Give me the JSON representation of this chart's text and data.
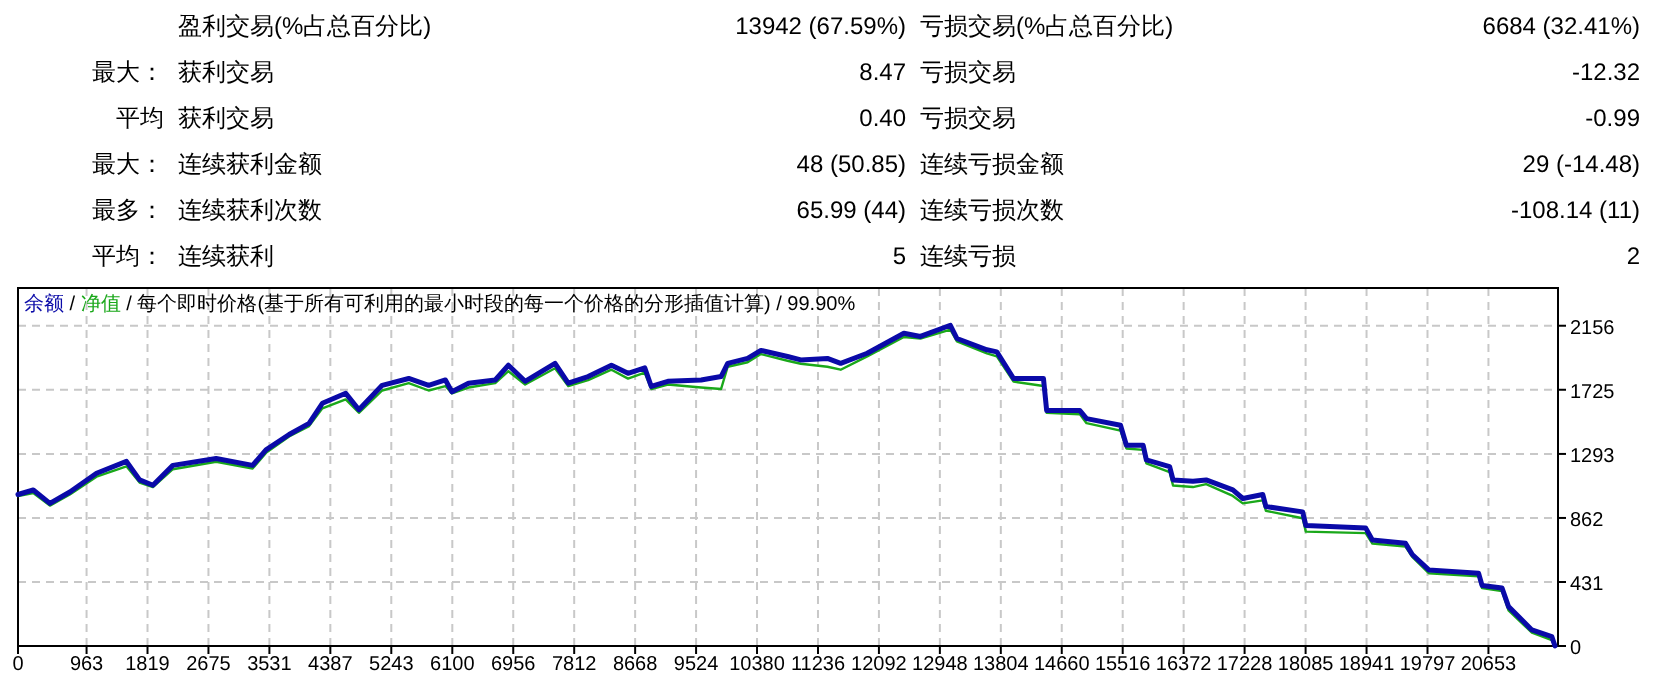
{
  "chart_data": [
    {
      "type": "other",
      "annotations": [
        "盈利交易(%占总百分比)",
        "13942 (67.59%)",
        "亏损交易(%占总百分比)",
        "6684 (32.41%)",
        "最大：",
        "获利交易",
        "8.47",
        "亏损交易",
        "-12.32",
        "平均",
        "获利交易",
        "0.40",
        "亏损交易",
        "-0.99",
        "最大：",
        "连续获利金额",
        "48 (50.85)",
        "连续亏损金额",
        "29 (-14.48)",
        "最多：",
        "连续获利次数",
        "65.99 (44)",
        "连续亏损次数",
        "-108.14 (11)",
        "平均：",
        "连续获利",
        "5",
        "连续亏损",
        "2"
      ]
    },
    {
      "type": "line",
      "annotations": [
        "/",
        "/"
      ],
      "title": "每个即时价格(基于所有可利用的最小时段的每一个价格的分形插值计算) / 99.90%",
      "legend": "top left",
      "grid": true,
      "line_style": "solid",
      "marker": "none",
      "x": [
        0,
        215,
        448,
        728,
        1103,
        1523,
        1708,
        1895,
        2175,
        2783,
        3295,
        3483,
        3808,
        4088,
        4275,
        4603,
        4788,
        5115,
        5488,
        5768,
        6003,
        6095,
        6328,
        6703,
        6888,
        7123,
        7543,
        7728,
        8008,
        8335,
        8568,
        8803,
        8895,
        9128,
        9595,
        9875,
        9968,
        10248,
        10435,
        10808,
        10995,
        11368,
        11555,
        11928,
        12443,
        12675,
        13095,
        13188,
        13608,
        13748,
        13983,
        14403,
        14448,
        14915,
        15008,
        15485,
        15568,
        15803,
        15848,
        16175,
        16223,
        16503,
        16688,
        17063,
        17203,
        17483,
        17528,
        18043,
        18088,
        18928,
        19023,
        19488,
        19583,
        19815,
        20515,
        20563,
        20843,
        20935,
        21263,
        21543,
        21588
      ],
      "series": [
        {
          "name": "余额",
          "color": "#0a0aa8",
          "values": [
            1020,
            1050,
            960,
            1037,
            1163,
            1243,
            1118,
            1082,
            1216,
            1262,
            1216,
            1320,
            1424,
            1499,
            1634,
            1701,
            1590,
            1755,
            1801,
            1755,
            1791,
            1711,
            1769,
            1791,
            1890,
            1782,
            1903,
            1769,
            1814,
            1890,
            1836,
            1872,
            1747,
            1782,
            1791,
            1814,
            1903,
            1936,
            1990,
            1949,
            1926,
            1936,
            1903,
            1971,
            2105,
            2084,
            2159,
            2070,
            1994,
            1980,
            1801,
            1801,
            1585,
            1585,
            1531,
            1486,
            1351,
            1351,
            1253,
            1208,
            1118,
            1109,
            1118,
            1051,
            993,
            1020,
            939,
            903,
            812,
            795,
            714,
            691,
            616,
            512,
            489,
            408,
            391,
            265,
            108,
            63,
            0
          ]
        },
        {
          "name": "净值",
          "color": "#1aa81a",
          "values": [
            1010,
            1030,
            945,
            1020,
            1140,
            1210,
            1100,
            1070,
            1190,
            1240,
            1195,
            1300,
            1410,
            1480,
            1600,
            1660,
            1570,
            1720,
            1770,
            1720,
            1750,
            1700,
            1740,
            1770,
            1850,
            1760,
            1870,
            1750,
            1790,
            1860,
            1800,
            1840,
            1730,
            1760,
            1740,
            1730,
            1880,
            1910,
            1965,
            1920,
            1900,
            1880,
            1860,
            1950,
            2080,
            2070,
            2130,
            2050,
            1970,
            1950,
            1780,
            1750,
            1570,
            1560,
            1500,
            1450,
            1330,
            1320,
            1230,
            1170,
            1080,
            1070,
            1090,
            1010,
            960,
            980,
            910,
            860,
            770,
            760,
            690,
            670,
            600,
            490,
            470,
            390,
            370,
            240,
            90,
            40,
            0
          ]
        }
      ],
      "xlim": [
        0,
        21630
      ],
      "xticks": [
        0,
        963,
        1819,
        2675,
        3531,
        4387,
        5243,
        6100,
        6956,
        7812,
        8668,
        9524,
        10380,
        11236,
        12092,
        12948,
        13804,
        14660,
        15516,
        16372,
        17228,
        18085,
        18941,
        19797,
        20653
      ],
      "ylim": [
        0,
        2410
      ],
      "yticks": [
        0,
        431,
        862,
        1293,
        1725,
        2156
      ]
    }
  ]
}
